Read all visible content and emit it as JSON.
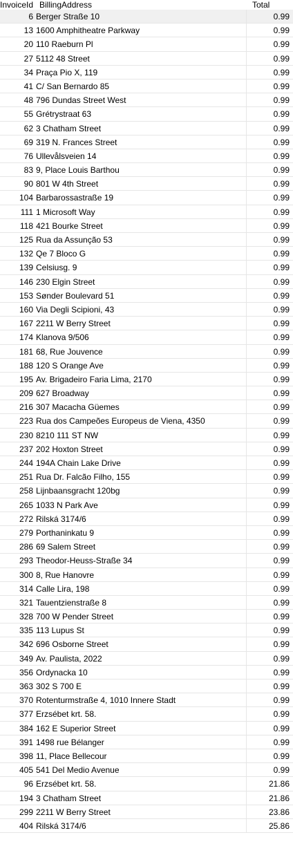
{
  "columns": [
    "InvoiceId",
    "BillingAddress",
    "Total"
  ],
  "rows": [
    {
      "id": "6",
      "address": "Berger Straße 10",
      "total": "0.99"
    },
    {
      "id": "13",
      "address": "1600 Amphitheatre Parkway",
      "total": "0.99"
    },
    {
      "id": "20",
      "address": "110 Raeburn Pl",
      "total": "0.99"
    },
    {
      "id": "27",
      "address": "5112 48 Street",
      "total": "0.99"
    },
    {
      "id": "34",
      "address": "Praça Pio X, 119",
      "total": "0.99"
    },
    {
      "id": "41",
      "address": "C/ San Bernardo 85",
      "total": "0.99"
    },
    {
      "id": "48",
      "address": "796 Dundas Street West",
      "total": "0.99"
    },
    {
      "id": "55",
      "address": "Grétrystraat 63",
      "total": "0.99"
    },
    {
      "id": "62",
      "address": "3 Chatham Street",
      "total": "0.99"
    },
    {
      "id": "69",
      "address": "319 N. Frances Street",
      "total": "0.99"
    },
    {
      "id": "76",
      "address": "Ullevålsveien 14",
      "total": "0.99"
    },
    {
      "id": "83",
      "address": "9, Place Louis Barthou",
      "total": "0.99"
    },
    {
      "id": "90",
      "address": "801 W 4th Street",
      "total": "0.99"
    },
    {
      "id": "104",
      "address": "Barbarossastraße 19",
      "total": "0.99"
    },
    {
      "id": "111",
      "address": "1 Microsoft Way",
      "total": "0.99"
    },
    {
      "id": "118",
      "address": "421 Bourke Street",
      "total": "0.99"
    },
    {
      "id": "125",
      "address": "Rua da Assunção 53",
      "total": "0.99"
    },
    {
      "id": "132",
      "address": "Qe 7 Bloco G",
      "total": "0.99"
    },
    {
      "id": "139",
      "address": "Celsiusg. 9",
      "total": "0.99"
    },
    {
      "id": "146",
      "address": "230 Elgin Street",
      "total": "0.99"
    },
    {
      "id": "153",
      "address": "Sønder Boulevard 51",
      "total": "0.99"
    },
    {
      "id": "160",
      "address": "Via Degli Scipioni, 43",
      "total": "0.99"
    },
    {
      "id": "167",
      "address": "2211 W Berry Street",
      "total": "0.99"
    },
    {
      "id": "174",
      "address": "Klanova 9/506",
      "total": "0.99"
    },
    {
      "id": "181",
      "address": "68, Rue Jouvence",
      "total": "0.99"
    },
    {
      "id": "188",
      "address": "120 S Orange Ave",
      "total": "0.99"
    },
    {
      "id": "195",
      "address": "Av. Brigadeiro Faria Lima, 2170",
      "total": "0.99"
    },
    {
      "id": "209",
      "address": "627 Broadway",
      "total": "0.99"
    },
    {
      "id": "216",
      "address": "307 Macacha Güemes",
      "total": "0.99"
    },
    {
      "id": "223",
      "address": "Rua dos Campeões Europeus de Viena, 4350",
      "total": "0.99"
    },
    {
      "id": "230",
      "address": "8210 111 ST NW",
      "total": "0.99"
    },
    {
      "id": "237",
      "address": "202 Hoxton Street",
      "total": "0.99"
    },
    {
      "id": "244",
      "address": "194A Chain Lake Drive",
      "total": "0.99"
    },
    {
      "id": "251",
      "address": "Rua Dr. Falcão Filho, 155",
      "total": "0.99"
    },
    {
      "id": "258",
      "address": "Lijnbaansgracht 120bg",
      "total": "0.99"
    },
    {
      "id": "265",
      "address": "1033 N Park Ave",
      "total": "0.99"
    },
    {
      "id": "272",
      "address": "Rilská 3174/6",
      "total": "0.99"
    },
    {
      "id": "279",
      "address": "Porthaninkatu 9",
      "total": "0.99"
    },
    {
      "id": "286",
      "address": "69 Salem Street",
      "total": "0.99"
    },
    {
      "id": "293",
      "address": "Theodor-Heuss-Straße 34",
      "total": "0.99"
    },
    {
      "id": "300",
      "address": "8, Rue Hanovre",
      "total": "0.99"
    },
    {
      "id": "314",
      "address": "Calle Lira, 198",
      "total": "0.99"
    },
    {
      "id": "321",
      "address": "Tauentzienstraße 8",
      "total": "0.99"
    },
    {
      "id": "328",
      "address": "700 W Pender Street",
      "total": "0.99"
    },
    {
      "id": "335",
      "address": "113 Lupus St",
      "total": "0.99"
    },
    {
      "id": "342",
      "address": "696 Osborne Street",
      "total": "0.99"
    },
    {
      "id": "349",
      "address": "Av. Paulista, 2022",
      "total": "0.99"
    },
    {
      "id": "356",
      "address": "Ordynacka 10",
      "total": "0.99"
    },
    {
      "id": "363",
      "address": "302 S 700 E",
      "total": "0.99"
    },
    {
      "id": "370",
      "address": "Rotenturmstraße 4, 1010 Innere Stadt",
      "total": "0.99"
    },
    {
      "id": "377",
      "address": "Erzsébet krt. 58.",
      "total": "0.99"
    },
    {
      "id": "384",
      "address": "162 E Superior Street",
      "total": "0.99"
    },
    {
      "id": "391",
      "address": "1498 rue Bélanger",
      "total": "0.99"
    },
    {
      "id": "398",
      "address": "11, Place Bellecour",
      "total": "0.99"
    },
    {
      "id": "405",
      "address": "541 Del Medio Avenue",
      "total": "0.99"
    },
    {
      "id": "96",
      "address": "Erzsébet krt. 58.",
      "total": "21.86"
    },
    {
      "id": "194",
      "address": "3 Chatham Street",
      "total": "21.86"
    },
    {
      "id": "299",
      "address": "2211 W Berry Street",
      "total": "23.86"
    },
    {
      "id": "404",
      "address": "Rilská 3174/6",
      "total": "25.86"
    }
  ]
}
